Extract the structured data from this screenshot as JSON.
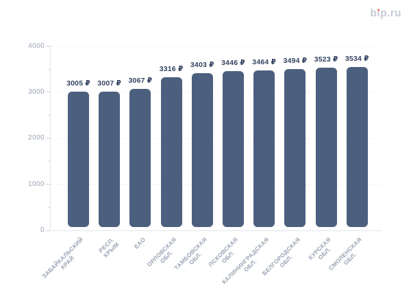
{
  "logo": {
    "label": "bip.ru",
    "dot_color": "#F0724E"
  },
  "chart_data": {
    "type": "bar",
    "title": "",
    "xlabel": "",
    "ylabel": "",
    "categories": [
      "ЗАБАЙКАЛЬСКИЙ КРАЙ",
      "РЕСП. КРЫМ",
      "ЕАО",
      "ОРЛОВСКАЯ ОБЛ.",
      "ТАМБОВСКАЯ ОБЛ.",
      "ПСКОВСКАЯ ОБЛ.",
      "КАЛИНИНГРАДСКАЯ ОБЛ.",
      "БЕЛГОРОДСКАЯ ОБЛ.",
      "КУРСКАЯ ОБЛ.",
      "СМОЛЕНСКАЯ ОБЛ."
    ],
    "category_label_lines": [
      [
        "ЗАБАЙКАЛЬСКИЙ",
        "КРАЙ"
      ],
      [
        "РЕСП. КРЫМ"
      ],
      [
        "ЕАО"
      ],
      [
        "ОРЛОВСКАЯ",
        "ОБЛ."
      ],
      [
        "ТАМБОВСКАЯ",
        "ОБЛ."
      ],
      [
        "ПСКОВСКАЯ",
        "ОБЛ."
      ],
      [
        "КАЛИНИНГРАДСКАЯ",
        "ОБЛ."
      ],
      [
        "БЕЛГОРОДСКАЯ",
        "ОБЛ."
      ],
      [
        "КУРСКАЯ ОБЛ."
      ],
      [
        "СМОЛЕНСКАЯ",
        "ОБЛ."
      ]
    ],
    "values": [
      3005,
      3007,
      3067,
      3316,
      3403,
      3446,
      3464,
      3494,
      3523,
      3534
    ],
    "value_suffix": " ₽",
    "ylim": [
      0,
      4000
    ],
    "y_ticks": [
      0,
      1000,
      2000,
      3000,
      4000
    ],
    "y_minor_ticks": [
      500,
      1500,
      2500,
      3500
    ],
    "grid": "horizontal-dotted",
    "legend": "none",
    "bar_color": "#4C5F7E"
  }
}
